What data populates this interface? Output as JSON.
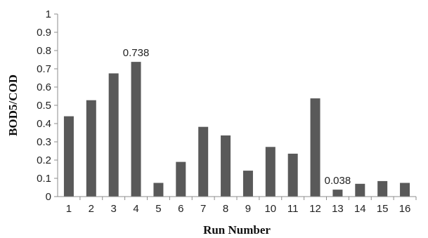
{
  "chart_data": {
    "type": "bar",
    "title": "",
    "xlabel": "Run Number",
    "ylabel": "BOD5/COD",
    "ylim": [
      0,
      1
    ],
    "yticks": [
      "0",
      "0.1",
      "0.2",
      "0.3",
      "0.4",
      "0.5",
      "0.6",
      "0.7",
      "0.8",
      "0.9",
      "1"
    ],
    "categories": [
      "1",
      "2",
      "3",
      "4",
      "5",
      "6",
      "7",
      "8",
      "9",
      "10",
      "11",
      "12",
      "13",
      "14",
      "15",
      "16"
    ],
    "values": [
      0.44,
      0.528,
      0.675,
      0.738,
      0.075,
      0.19,
      0.382,
      0.335,
      0.142,
      0.272,
      0.235,
      0.538,
      0.038,
      0.07,
      0.085,
      0.075
    ],
    "annotations": [
      {
        "category_index": 3,
        "text": "0.738"
      },
      {
        "category_index": 12,
        "text": "0.038"
      }
    ],
    "grid": false,
    "legend": "none",
    "colors": {
      "bar": "#595959",
      "axis": "#8c8c8c"
    }
  }
}
